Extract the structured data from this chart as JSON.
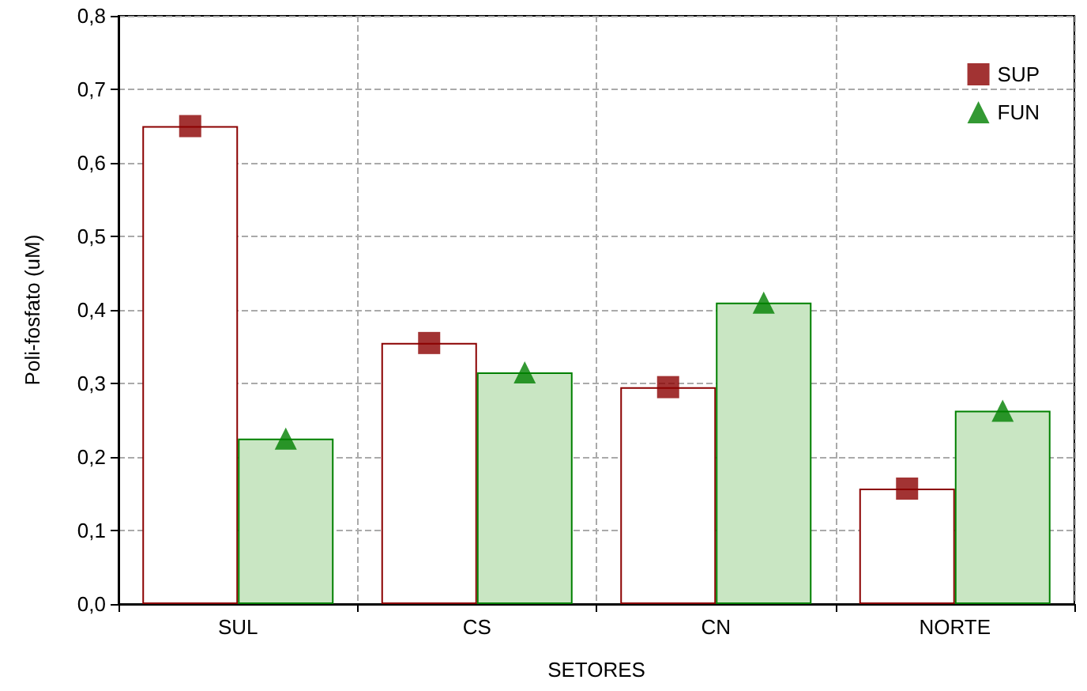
{
  "chart_data": {
    "type": "bar",
    "xlabel": "SETORES",
    "ylabel": "Poli-fosfato (uM)",
    "categories": [
      "SUL",
      "CS",
      "CN",
      "NORTE"
    ],
    "series": [
      {
        "color": "#8b0000",
        "values": [
          0.65,
          0.355,
          0.295,
          0.157
        ]
      },
      {
        "color": "#008000",
        "values": [
          0.225,
          0.315,
          0.41,
          0.263
        ]
      },
      {
        "type": "scatter",
        "name": "SUP",
        "color": "#8b0000",
        "marker": "square",
        "values": [
          0.65,
          0.355,
          0.295,
          0.157
        ]
      },
      {
        "type": "scatter",
        "name": "FUN",
        "color": "#008000",
        "marker": "triangle",
        "values": [
          0.225,
          0.315,
          0.41,
          0.263
        ]
      }
    ],
    "ylim": [
      0,
      0.8
    ],
    "yticks": [
      {
        "value": 0,
        "label": "0,0"
      },
      {
        "value": 0.1,
        "label": "0,1"
      },
      {
        "value": 0.2,
        "label": "0,2"
      },
      {
        "value": 0.3,
        "label": "0,3"
      },
      {
        "value": 0.4,
        "label": "0,4"
      },
      {
        "value": 0.5,
        "label": "0,5"
      },
      {
        "value": 0.6,
        "label": "0,6"
      },
      {
        "value": 0.7,
        "label": "0,7"
      },
      {
        "value": 0.8,
        "label": "0,8"
      }
    ],
    "grid": true,
    "legend": "top right"
  }
}
